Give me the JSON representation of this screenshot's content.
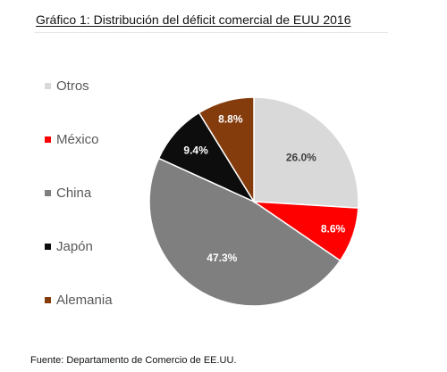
{
  "title": "Gráfico 1: Distribución del déficit comercial de EUU 2016",
  "source": "Fuente: Departamento de Comercio de EE.UU.",
  "chart_data": {
    "type": "pie",
    "title": "Gráfico 1: Distribución del déficit comercial de EUU 2016",
    "legend_position": "left",
    "slices": [
      {
        "name": "Otros",
        "value": 26.0,
        "label": "26.0%",
        "color": "#d9d9d9",
        "label_color": "#404040"
      },
      {
        "name": "México",
        "value": 8.6,
        "label": "8.6%",
        "color": "#ff0000",
        "label_color": "#ffffff"
      },
      {
        "name": "China",
        "value": 47.3,
        "label": "47.3%",
        "color": "#7f7f7f",
        "label_color": "#ffffff"
      },
      {
        "name": "Japón",
        "value": 9.4,
        "label": "9.4%",
        "color": "#0d0d0d",
        "label_color": "#ffffff"
      },
      {
        "name": "Alemania",
        "value": 8.8,
        "label": "8.8%",
        "color": "#843c0c",
        "label_color": "#ffffff"
      }
    ]
  }
}
